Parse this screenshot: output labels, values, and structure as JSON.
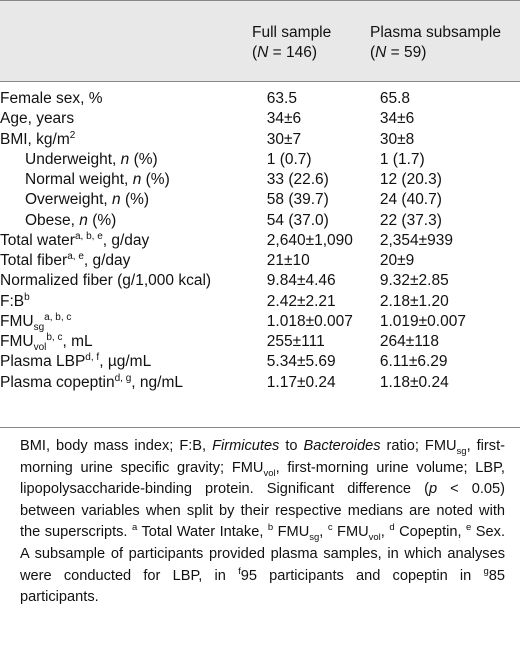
{
  "header": {
    "col1_title": "Full sample",
    "col1_n_prefix": "(",
    "col1_n_var": "N",
    "col1_n_value": " = 146)",
    "col2_title": "Plasma subsample",
    "col2_n_prefix": "(",
    "col2_n_var": "N",
    "col2_n_value": " = 59)"
  },
  "rows": [
    {
      "label": "Female sex, %",
      "full": "63.5",
      "plasma": "65.8"
    },
    {
      "label": "Age, years",
      "full": "34±6",
      "plasma": "34±6"
    },
    {
      "label": "BMI, kg/m",
      "label_sup": "2",
      "full": "30±7",
      "plasma": "30±8"
    },
    {
      "label": "Underweight, ",
      "label_italic": "n",
      "label_tail": " (%)",
      "full": "1 (0.7)",
      "plasma": "1 (1.7)"
    },
    {
      "label": "Normal weight, ",
      "label_italic": "n",
      "label_tail": " (%)",
      "full": "33 (22.6)",
      "plasma": "12 (20.3)"
    },
    {
      "label": "Overweight, ",
      "label_italic": "n",
      "label_tail": " (%)",
      "full": "58 (39.7)",
      "plasma": "24 (40.7)"
    },
    {
      "label": "Obese, ",
      "label_italic": "n",
      "label_tail": " (%)",
      "full": "54 (37.0)",
      "plasma": "22 (37.3)"
    },
    {
      "label": "Total water",
      "label_sup": "a, b, e",
      "label_tail": ", g/day",
      "full": "2,640±1,090",
      "plasma": "2,354±939"
    },
    {
      "label": "Total fiber",
      "label_sup": "a, e",
      "label_tail": ", g/day",
      "full": "21±10",
      "plasma": "20±9"
    },
    {
      "label": "Normalized fiber (g/1,000 kcal)",
      "full": "9.84±4.46",
      "plasma": "9.32±2.85"
    },
    {
      "label": "F:B",
      "label_sup": "b",
      "full": "2.42±2.21",
      "plasma": "2.18±1.20"
    },
    {
      "label": "FMU",
      "label_sub": "sg",
      "label_sup": "a, b, c",
      "full": "1.018±0.007",
      "plasma": "1.019±0.007"
    },
    {
      "label": "FMU",
      "label_sub": "vol",
      "label_sup": "b, c",
      "label_tail": ", mL",
      "full": "255±111",
      "plasma": "264±118"
    },
    {
      "label": "Plasma LBP",
      "label_sup": "d, f",
      "label_tail": ", µg/mL",
      "full": "5.34±5.69",
      "plasma": "6.11±6.29"
    },
    {
      "label": "Plasma copeptin",
      "label_sup": "d, g",
      "label_tail": ", ng/mL",
      "full": "1.17±0.24",
      "plasma": "1.18±0.24"
    }
  ],
  "footnote": {
    "t1": "BMI, body mass index; F:B, ",
    "firmicutes": "Firmicutes",
    "t2": " to ",
    "bacteroides": "Bacteroides",
    "t3": " ratio; FMU",
    "sub_sg": "sg",
    "t4": ", first-morning urine specific gravity; FMU",
    "sub_vol": "vol",
    "t5": ", first-morning urine volume; LBP, lipopolysaccharide-binding protein. Significant difference (",
    "p": "p",
    "t6": " < 0.05) between variables when split by their respective medians are noted with the superscripts. ",
    "sup_a": "a",
    "t7": " Total Water Intake, ",
    "sup_b": "b",
    "t8": " FMU",
    "sub_sg2": "sg",
    "t9": ", ",
    "sup_c": "c",
    "t10": " FMU",
    "sub_vol2": "vol",
    "t11": ", ",
    "sup_d": "d",
    "t12": " Copeptin, ",
    "sup_e": "e",
    "t13": " Sex. A subsample of participants provided plasma samples, in which analyses were conducted for LBP, in ",
    "sup_f": "f",
    "t14": "95 participants and copeptin in ",
    "sup_g": "g",
    "t15": "85 participants."
  }
}
